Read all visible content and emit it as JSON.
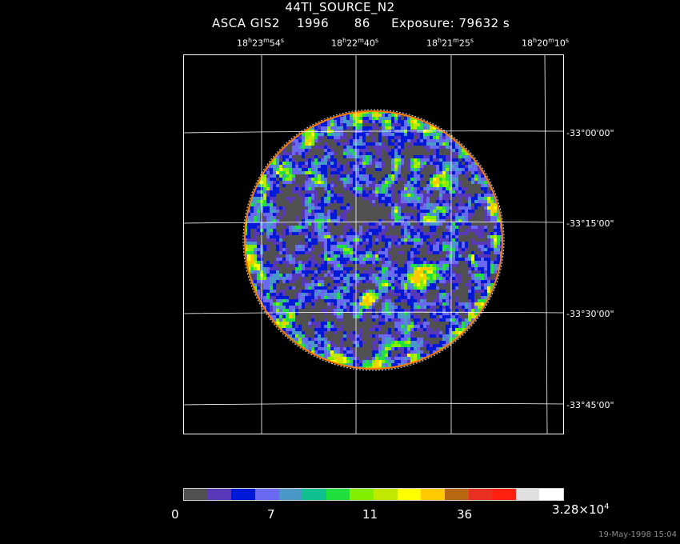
{
  "header": {
    "object": "44TI_SOURCE_N2",
    "line2": "ASCA GIS2    1996      86     Exposure: 79632 s"
  },
  "ra_labels": [
    {
      "h": "18",
      "m": "23",
      "s": "54"
    },
    {
      "h": "18",
      "m": "22",
      "s": "40"
    },
    {
      "h": "18",
      "m": "21",
      "s": "25"
    },
    {
      "h": "18",
      "m": "20",
      "s": "10"
    }
  ],
  "dec_labels": [
    "-33°00'00\"",
    "-33°15'00\"",
    "-33°30'00\"",
    "-33°45'00\""
  ],
  "colorbar": {
    "colors": [
      "#505050",
      "#5838b8",
      "#0018d8",
      "#6a6af0",
      "#4898c8",
      "#10c090",
      "#20e040",
      "#80f000",
      "#c0e800",
      "#ffff00",
      "#ffc800",
      "#b86810",
      "#e83020",
      "#ff2010",
      "#e0e0e0",
      "#ffffff"
    ],
    "labels": [
      "0",
      "7",
      "11",
      "36",
      "3.28×10"
    ],
    "exp_superscript": "4"
  },
  "timestamp": "19-May-1998 15:04",
  "image": {
    "background_color": "#000000",
    "grid_color": "#ffffff",
    "field_shape": "circle"
  }
}
